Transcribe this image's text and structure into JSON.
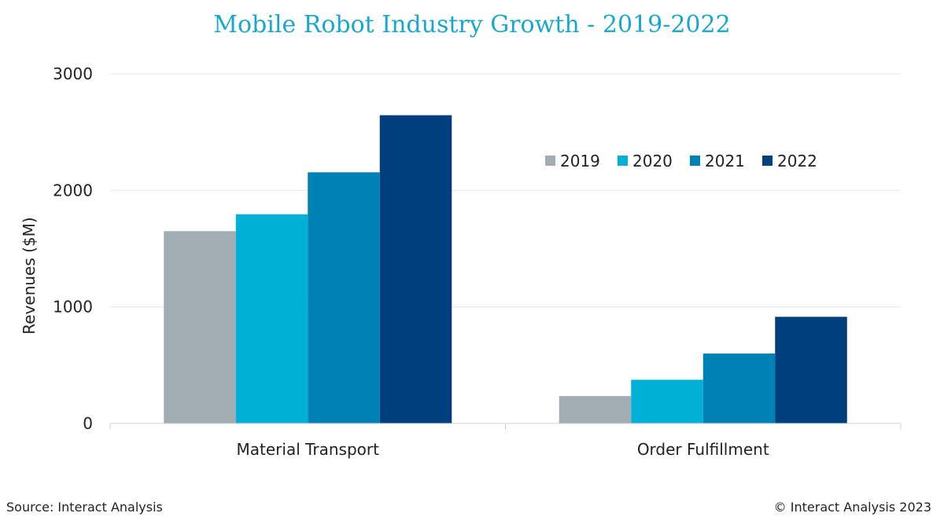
{
  "chart_data": {
    "type": "bar",
    "title": "Mobile Robot Industry Growth - 2019-2022",
    "ylabel": "Revenues ($M)",
    "xlabel": "",
    "ylim": [
      0,
      3000
    ],
    "yticks": [
      0,
      1000,
      2000,
      3000
    ],
    "grid": true,
    "legend_position": "top-right",
    "categories": [
      "Material Transport",
      "Order Fulfillment"
    ],
    "series": [
      {
        "name": "2019",
        "color": "#a2acb3",
        "values": [
          1650,
          235
        ]
      },
      {
        "name": "2020",
        "color": "#00b0d5",
        "values": [
          1795,
          375
        ]
      },
      {
        "name": "2021",
        "color": "#0081b5",
        "values": [
          2155,
          600
        ]
      },
      {
        "name": "2022",
        "color": "#003f7e",
        "values": [
          2645,
          915
        ]
      }
    ]
  },
  "footer": {
    "source": "Source: Interact Analysis",
    "copyright": "© Interact Analysis 2023"
  }
}
